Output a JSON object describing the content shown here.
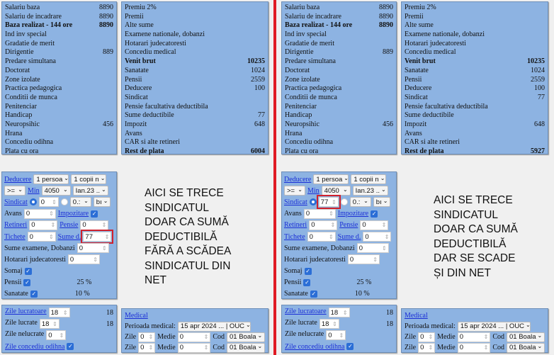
{
  "colors": {
    "panel": "#8db3e2",
    "divider": "#e01b24",
    "highlight": "#d0212c",
    "link": "#1a2ed6"
  },
  "panels": [
    {
      "left_table": [
        {
          "label": "Salariu baza",
          "value": "8890"
        },
        {
          "label": "Salariu de incadrare",
          "value": "8890"
        },
        {
          "label": "Baza realizat - 144 ore",
          "value": "8890",
          "bold": true
        },
        {
          "label": "Ind inv special",
          "value": ""
        },
        {
          "label": "Gradatie de merit",
          "value": ""
        },
        {
          "label": "Dirigentie",
          "value": "889"
        },
        {
          "label": "Predare simultana",
          "value": ""
        },
        {
          "label": "Doctorat",
          "value": ""
        },
        {
          "label": "Zone izolate",
          "value": ""
        },
        {
          "label": "Practica pedagogica",
          "value": ""
        },
        {
          "label": "Conditii de munca",
          "value": ""
        },
        {
          "label": "Penitenciar",
          "value": ""
        },
        {
          "label": "Handicap",
          "value": ""
        },
        {
          "label": "Neuropsihic",
          "value": "456"
        },
        {
          "label": "Hrana",
          "value": ""
        },
        {
          "label": "Concediu odihna",
          "value": ""
        },
        {
          "label": "Plata cu ora",
          "value": ""
        }
      ],
      "right_table": [
        {
          "label": "Premiu 2%",
          "value": ""
        },
        {
          "label": "Premii",
          "value": ""
        },
        {
          "label": "Alte sume",
          "value": ""
        },
        {
          "label": "Examene nationale, dobanzi",
          "value": ""
        },
        {
          "label": "Hotarari judecatoresti",
          "value": ""
        },
        {
          "label": "Concediu medical",
          "value": ""
        },
        {
          "label": "Venit brut",
          "value": "10235",
          "bold": true
        },
        {
          "label": "Sanatate",
          "value": "1024"
        },
        {
          "label": "Pensii",
          "value": "2559"
        },
        {
          "label": "Deducere",
          "value": "100"
        },
        {
          "label": "Sindicat",
          "value": ""
        },
        {
          "label": "Pensie facultativa deductibila",
          "value": ""
        },
        {
          "label": "Sume deductibile",
          "value": "77"
        },
        {
          "label": "Impozit",
          "value": "648"
        },
        {
          "label": "Avans",
          "value": ""
        },
        {
          "label": "CAR si alte retineri",
          "value": ""
        },
        {
          "label": "Rest de plata",
          "value": "6004",
          "bold": true
        }
      ],
      "form": {
        "deducere": "Deducere",
        "persoane": "1 persoa",
        "copii": "1 copii n",
        "op": ">=",
        "min": "Min",
        "min_val": "4050",
        "period": "Ian.23 ..",
        "sindicat": "Sindicat",
        "sindicat_val": "0",
        "percent": "0.:",
        "brut": "bı",
        "avans": "Avans",
        "avans_val": "0",
        "impozitare": "Impozitare",
        "retineri": "Retineri",
        "retineri_val": "0",
        "pensie": "Pensie",
        "pensie_val": "0",
        "tichete": "Tichete",
        "tichete_val": "0",
        "sume_d": "Sume d.",
        "sume_d_val": "77",
        "examene": "Sume examene, Dobanzi",
        "examene_val": "0",
        "hotarari": "Hotarari judecatoresti",
        "hotarari_val": "0",
        "somaj": "Somaj",
        "pensii": "Pensii",
        "pensii_pct": "25 %",
        "sanatate": "Sanatate",
        "sanatate_pct": "10 %",
        "highlight": "sume_d"
      },
      "note": [
        "AICI SE TRECE",
        "SINDICATUL",
        "DOAR CA SUMĂ",
        "DEDUCTIBILĂ",
        "FĂRĂ A SCĂDEA",
        "SINDICATUL DIN",
        "NET"
      ],
      "days": {
        "lucratoare": "Zile lucratoare",
        "lucratoare_val": "18",
        "lucratoare_total": "18",
        "lucrate": "Zile lucrate",
        "lucrate_val": "18",
        "lucrate_total": "18",
        "nelucrate": "Zile nelucrate",
        "nelucrate_val": "0",
        "concediu": "Zile concediu odihna"
      },
      "medical": {
        "title": "Medical",
        "perioada": "Perioada medical:",
        "perioada_val": "15 apr 2024 ... | OUC",
        "zile": "Zile",
        "zile_val": "0",
        "medie": "Medie",
        "medie_val": "0",
        "cod": "Cod",
        "cod_val": "01 Boala"
      }
    },
    {
      "left_table": [
        {
          "label": "Salariu baza",
          "value": "8890"
        },
        {
          "label": "Salariu de incadrare",
          "value": "8890"
        },
        {
          "label": "Baza realizat - 144 ore",
          "value": "8890",
          "bold": true
        },
        {
          "label": "Ind inv special",
          "value": ""
        },
        {
          "label": "Gradatie de merit",
          "value": ""
        },
        {
          "label": "Dirigentie",
          "value": "889"
        },
        {
          "label": "Predare simultana",
          "value": ""
        },
        {
          "label": "Doctorat",
          "value": ""
        },
        {
          "label": "Zone izolate",
          "value": ""
        },
        {
          "label": "Practica pedagogica",
          "value": ""
        },
        {
          "label": "Conditii de munca",
          "value": ""
        },
        {
          "label": "Penitenciar",
          "value": ""
        },
        {
          "label": "Handicap",
          "value": ""
        },
        {
          "label": "Neuropsihic",
          "value": "456"
        },
        {
          "label": "Hrana",
          "value": ""
        },
        {
          "label": "Concediu odihna",
          "value": ""
        },
        {
          "label": "Plata cu ora",
          "value": ""
        }
      ],
      "right_table": [
        {
          "label": "Premiu 2%",
          "value": ""
        },
        {
          "label": "Premii",
          "value": ""
        },
        {
          "label": "Alte sume",
          "value": ""
        },
        {
          "label": "Examene nationale, dobanzi",
          "value": ""
        },
        {
          "label": "Hotarari judecatoresti",
          "value": ""
        },
        {
          "label": "Concediu medical",
          "value": ""
        },
        {
          "label": "Venit brut",
          "value": "10235",
          "bold": true
        },
        {
          "label": "Sanatate",
          "value": "1024"
        },
        {
          "label": "Pensii",
          "value": "2559"
        },
        {
          "label": "Deducere",
          "value": "100"
        },
        {
          "label": "Sindicat",
          "value": "77"
        },
        {
          "label": "Pensie facultativa deductibila",
          "value": ""
        },
        {
          "label": "Sume deductibile",
          "value": ""
        },
        {
          "label": "Impozit",
          "value": "648"
        },
        {
          "label": "Avans",
          "value": ""
        },
        {
          "label": "CAR si alte retineri",
          "value": ""
        },
        {
          "label": "Rest de plata",
          "value": "5927",
          "bold": true
        }
      ],
      "form": {
        "deducere": "Deducere",
        "persoane": "1 persoa",
        "copii": "1 copii n",
        "op": ">=",
        "min": "Min",
        "min_val": "4050",
        "period": "Ian.23 ..",
        "sindicat": "Sindicat",
        "sindicat_val": "77",
        "percent": "0.:",
        "brut": "bı",
        "avans": "Avans",
        "avans_val": "0",
        "impozitare": "Impozitare",
        "retineri": "Retineri",
        "retineri_val": "0",
        "pensie": "Pensie",
        "pensie_val": "0",
        "tichete": "Tichete",
        "tichete_val": "0",
        "sume_d": "Sume d.",
        "sume_d_val": "0",
        "examene": "Sume examene, Dobanzi",
        "examene_val": "0",
        "hotarari": "Hotarari judecatoresti",
        "hotarari_val": "0",
        "somaj": "Somaj",
        "pensii": "Pensii",
        "pensii_pct": "25 %",
        "sanatate": "Sanatate",
        "sanatate_pct": "10 %",
        "highlight": "sindicat"
      },
      "note": [
        "AICI SE TRECE",
        "SINDICATUL",
        "DOAR CA SUMĂ",
        "DEDUCTIBILĂ",
        "DAR SE SCADE",
        "ȘI DIN NET"
      ],
      "days": {
        "lucratoare": "Zile lucratoare",
        "lucratoare_val": "18",
        "lucratoare_total": "18",
        "lucrate": "Zile lucrate",
        "lucrate_val": "18",
        "lucrate_total": "18",
        "nelucrate": "Zile nelucrate",
        "nelucrate_val": "0",
        "concediu": "Zile concediu odihna"
      },
      "medical": {
        "title": "Medical",
        "perioada": "Perioada medical:",
        "perioada_val": "15 apr 2024 ... | OUC",
        "zile": "Zile",
        "zile_val": "0",
        "medie": "Medie",
        "medie_val": "0",
        "cod": "Cod",
        "cod_val": "01 Boala"
      }
    }
  ]
}
